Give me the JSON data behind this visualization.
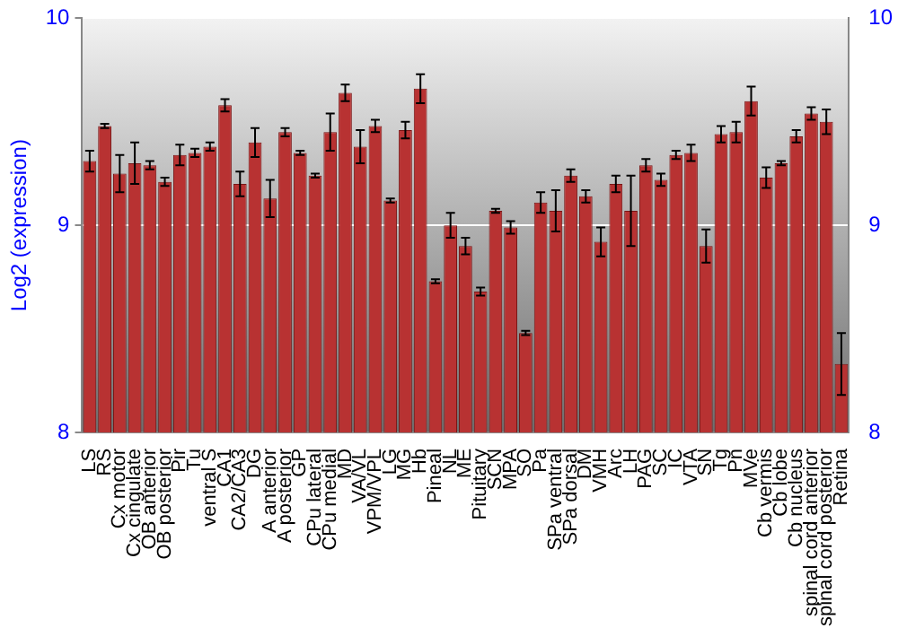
{
  "chart_data": {
    "type": "bar",
    "ylabel": "Log2 (expression)",
    "categories": [
      "LS",
      "RS",
      "Cx motor",
      "Cx cingulate",
      "OB anterior",
      "OB posterior",
      "Pir",
      "Tu",
      "ventral S",
      "CA1",
      "CA2/CA3",
      "DG",
      "A anterior",
      "A posterior",
      "GP",
      "CPu lateral",
      "CPu medial",
      "MD",
      "VA/VL",
      "VPM/VPL",
      "LG",
      "MG",
      "Hb",
      "Pineal",
      "NL",
      "ME",
      "Pituitary",
      "SCN",
      "MPA",
      "SO",
      "Pa",
      "SPa ventral",
      "SPa dorsal",
      "DM",
      "VMH",
      "Arc",
      "LH",
      "PAG",
      "SC",
      "IC",
      "VTA",
      "SN",
      "Tg",
      "Pn",
      "MVe",
      "Cb vermis",
      "Cb lobe",
      "Cb nucleus",
      "spinal cord anterior",
      "spinal cord posterior",
      "Retina"
    ],
    "values": [
      9.31,
      9.48,
      9.25,
      9.3,
      9.29,
      9.21,
      9.34,
      9.35,
      9.38,
      9.58,
      9.2,
      9.4,
      9.13,
      9.45,
      9.35,
      9.24,
      9.45,
      9.64,
      9.38,
      9.48,
      9.12,
      9.46,
      9.66,
      8.73,
      9.0,
      8.9,
      8.68,
      9.07,
      8.99,
      8.48,
      9.11,
      9.07,
      9.24,
      9.14,
      8.92,
      9.2,
      9.07,
      9.29,
      9.22,
      9.34,
      9.35,
      8.9,
      9.44,
      9.45,
      9.6,
      9.23,
      9.3,
      9.43,
      9.54,
      9.5,
      8.33
    ],
    "errors": [
      0.05,
      0.01,
      0.09,
      0.1,
      0.02,
      0.02,
      0.05,
      0.02,
      0.02,
      0.03,
      0.06,
      0.07,
      0.09,
      0.02,
      0.01,
      0.01,
      0.09,
      0.04,
      0.08,
      0.03,
      0.01,
      0.04,
      0.07,
      0.01,
      0.06,
      0.04,
      0.02,
      0.01,
      0.03,
      0.01,
      0.05,
      0.1,
      0.03,
      0.03,
      0.07,
      0.04,
      0.17,
      0.03,
      0.03,
      0.02,
      0.04,
      0.08,
      0.04,
      0.05,
      0.07,
      0.05,
      0.01,
      0.03,
      0.03,
      0.06,
      0.15
    ],
    "color": "#b83232",
    "ylim": [
      8,
      10
    ],
    "yticks": [
      8,
      9,
      10
    ],
    "y2lim": [
      8,
      10
    ],
    "y2ticks": [
      8,
      9,
      10
    ],
    "grid": "y"
  }
}
